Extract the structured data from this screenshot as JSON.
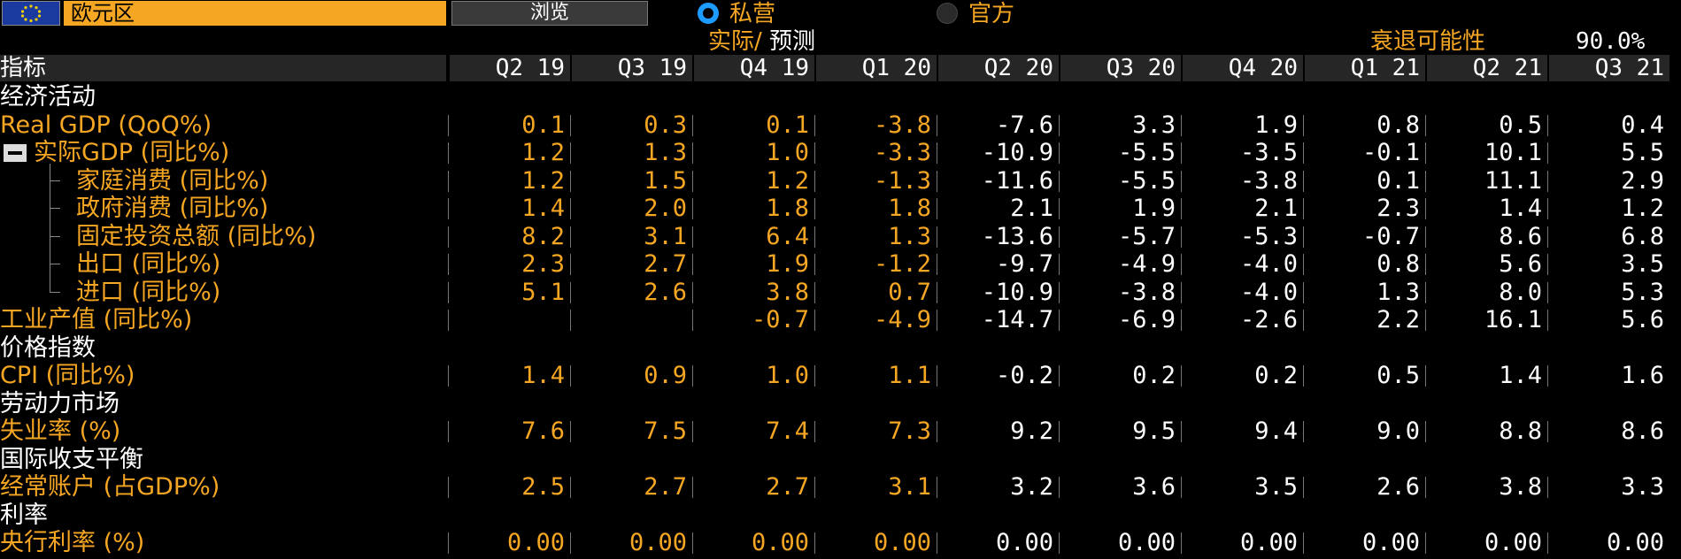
{
  "toolbar": {
    "region": "欧元区",
    "browse_label": "浏览",
    "radio_private": "私营",
    "radio_official": "官方"
  },
  "subheader": {
    "actual_label": "实际",
    "slash": "/",
    "forecast_label": "预测",
    "recession_label": "衰退可能性",
    "recession_value": "90.0%"
  },
  "table": {
    "header_label": "指标",
    "columns": [
      "Q2 19",
      "Q3 19",
      "Q4 19",
      "Q1 20",
      "Q2 20",
      "Q3 20",
      "Q4 20",
      "Q1 21",
      "Q2 21",
      "Q3 21"
    ],
    "actual_columns": 4,
    "rows": [
      {
        "type": "section",
        "label": "经济活动"
      },
      {
        "type": "metric",
        "label": "Real GDP (QoQ%)",
        "indent": 0,
        "values": [
          "0.1",
          "0.3",
          "0.1",
          "-3.8",
          "-7.6",
          "3.3",
          "1.9",
          "0.8",
          "0.5",
          "0.4"
        ]
      },
      {
        "type": "metric",
        "label": "实际GDP (同比%)",
        "indent": 1,
        "collapse": true,
        "values": [
          "1.2",
          "1.3",
          "1.0",
          "-3.3",
          "-10.9",
          "-5.5",
          "-3.5",
          "-0.1",
          "10.1",
          "5.5"
        ]
      },
      {
        "type": "metric",
        "label": "家庭消费 (同比%)",
        "indent": 2,
        "values": [
          "1.2",
          "1.5",
          "1.2",
          "-1.3",
          "-11.6",
          "-5.5",
          "-3.8",
          "0.1",
          "11.1",
          "2.9"
        ]
      },
      {
        "type": "metric",
        "label": "政府消费 (同比%)",
        "indent": 2,
        "values": [
          "1.4",
          "2.0",
          "1.8",
          "1.8",
          "2.1",
          "1.9",
          "2.1",
          "2.3",
          "1.4",
          "1.2"
        ]
      },
      {
        "type": "metric",
        "label": "固定投资总额 (同比%)",
        "indent": 2,
        "values": [
          "8.2",
          "3.1",
          "6.4",
          "1.3",
          "-13.6",
          "-5.7",
          "-5.3",
          "-0.7",
          "8.6",
          "6.8"
        ]
      },
      {
        "type": "metric",
        "label": "出口 (同比%)",
        "indent": 2,
        "values": [
          "2.3",
          "2.7",
          "1.9",
          "-1.2",
          "-9.7",
          "-4.9",
          "-4.0",
          "0.8",
          "5.6",
          "3.5"
        ]
      },
      {
        "type": "metric",
        "label": "进口 (同比%)",
        "indent": 2,
        "last": true,
        "values": [
          "5.1",
          "2.6",
          "3.8",
          "0.7",
          "-10.9",
          "-3.8",
          "-4.0",
          "1.3",
          "8.0",
          "5.3"
        ]
      },
      {
        "type": "metric",
        "label": "工业产值 (同比%)",
        "indent": 0,
        "values": [
          "",
          "",
          "-0.7",
          "-4.9",
          "-14.7",
          "-6.9",
          "-2.6",
          "2.2",
          "16.1",
          "5.6"
        ]
      },
      {
        "type": "section",
        "label": "价格指数"
      },
      {
        "type": "metric",
        "label": "CPI (同比%)",
        "indent": 0,
        "values": [
          "1.4",
          "0.9",
          "1.0",
          "1.1",
          "-0.2",
          "0.2",
          "0.2",
          "0.5",
          "1.4",
          "1.6"
        ]
      },
      {
        "type": "section",
        "label": "劳动力市场"
      },
      {
        "type": "metric",
        "label": "失业率 (%)",
        "indent": 0,
        "values": [
          "7.6",
          "7.5",
          "7.4",
          "7.3",
          "9.2",
          "9.5",
          "9.4",
          "9.0",
          "8.8",
          "8.6"
        ]
      },
      {
        "type": "section",
        "label": "国际收支平衡"
      },
      {
        "type": "metric",
        "label": "经常账户 (占GDP%)",
        "indent": 0,
        "values": [
          "2.5",
          "2.7",
          "2.7",
          "3.1",
          "3.2",
          "3.6",
          "3.5",
          "2.6",
          "3.8",
          "3.3"
        ]
      },
      {
        "type": "section",
        "label": "利率"
      },
      {
        "type": "metric",
        "label": "央行利率 (%)",
        "indent": 0,
        "values": [
          "0.00",
          "0.00",
          "0.00",
          "0.00",
          "0.00",
          "0.00",
          "0.00",
          "0.00",
          "0.00",
          "0.00"
        ]
      }
    ]
  },
  "colors": {
    "actual": "#f5a623",
    "forecast": "#ffffff",
    "radio_on": "#1e9bff"
  }
}
